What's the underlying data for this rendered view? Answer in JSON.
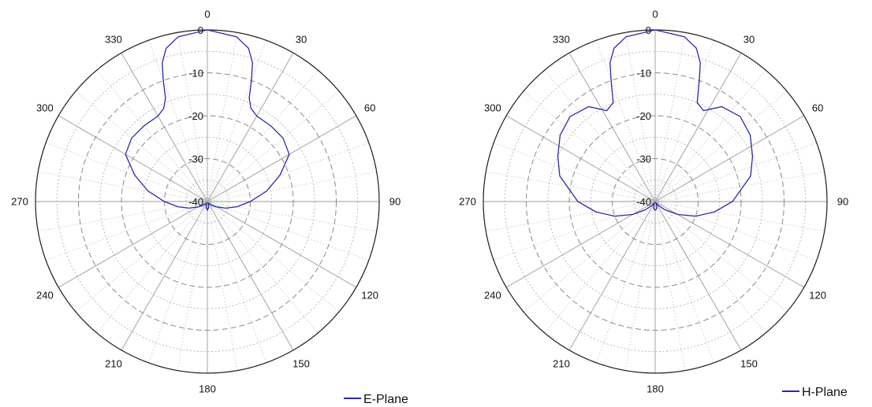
{
  "chart_data": [
    {
      "type": "polar-line",
      "title": "",
      "angle_unit": "degrees",
      "angle_ticks": [
        "0",
        "30",
        "60",
        "90",
        "120",
        "150",
        "180",
        "210",
        "240",
        "270",
        "300",
        "330"
      ],
      "radial_ticks": [
        "0",
        "-10",
        "-20",
        "-30",
        "-40"
      ],
      "rlim": [
        -40,
        0
      ],
      "grid": true,
      "legend_position": "bottom-right",
      "series": [
        {
          "name": "E-Plane",
          "color": "#2a2aa8",
          "points": [
            [
              0,
              0
            ],
            [
              10,
              -1
            ],
            [
              15,
              -3
            ],
            [
              18,
              -6
            ],
            [
              20,
              -10
            ],
            [
              22,
              -14
            ],
            [
              25,
              -16
            ],
            [
              30,
              -17
            ],
            [
              40,
              -17
            ],
            [
              50,
              -17
            ],
            [
              60,
              -18
            ],
            [
              70,
              -22
            ],
            [
              80,
              -26
            ],
            [
              90,
              -30
            ],
            [
              100,
              -33
            ],
            [
              110,
              -35.5
            ],
            [
              120,
              -37.5
            ],
            [
              130,
              -38.5
            ],
            [
              140,
              -39.3
            ],
            [
              150,
              -39.6
            ],
            [
              160,
              -39.2
            ],
            [
              170,
              -38.5
            ],
            [
              180,
              -38
            ],
            [
              190,
              -38.5
            ],
            [
              200,
              -39.2
            ],
            [
              210,
              -39.6
            ],
            [
              220,
              -39.3
            ],
            [
              230,
              -38.5
            ],
            [
              240,
              -37.5
            ],
            [
              250,
              -35.5
            ],
            [
              260,
              -33
            ],
            [
              270,
              -30
            ],
            [
              280,
              -26
            ],
            [
              290,
              -22
            ],
            [
              300,
              -18
            ],
            [
              310,
              -17
            ],
            [
              320,
              -17
            ],
            [
              330,
              -17
            ],
            [
              335,
              -16
            ],
            [
              338,
              -14
            ],
            [
              340,
              -10
            ],
            [
              342,
              -6
            ],
            [
              345,
              -3
            ],
            [
              350,
              -1
            ],
            [
              360,
              0
            ]
          ]
        }
      ]
    },
    {
      "type": "polar-line",
      "title": "",
      "angle_unit": "degrees",
      "angle_ticks": [
        "0",
        "30",
        "60",
        "90",
        "120",
        "150",
        "180",
        "210",
        "240",
        "270",
        "300",
        "330"
      ],
      "radial_ticks": [
        "0",
        "-10",
        "-20",
        "-30",
        "-40"
      ],
      "rlim": [
        -40,
        0
      ],
      "grid": true,
      "legend_position": "bottom-right",
      "series": [
        {
          "name": "H-Plane",
          "color": "#2a2aa8",
          "points": [
            [
              0,
              0
            ],
            [
              10,
              -1
            ],
            [
              15,
              -3
            ],
            [
              18,
              -6
            ],
            [
              20,
              -10
            ],
            [
              23,
              -15
            ],
            [
              28,
              -16
            ],
            [
              35,
              -13
            ],
            [
              45,
              -12
            ],
            [
              55,
              -13
            ],
            [
              65,
              -15
            ],
            [
              75,
              -17
            ],
            [
              90,
              -22
            ],
            [
              100,
              -26
            ],
            [
              110,
              -30
            ],
            [
              120,
              -34
            ],
            [
              130,
              -37
            ],
            [
              140,
              -38.8
            ],
            [
              150,
              -39.6
            ],
            [
              160,
              -39
            ],
            [
              170,
              -38.2
            ],
            [
              180,
              -38
            ],
            [
              190,
              -38.2
            ],
            [
              200,
              -39
            ],
            [
              210,
              -39.6
            ],
            [
              220,
              -38.8
            ],
            [
              230,
              -37
            ],
            [
              240,
              -34
            ],
            [
              250,
              -30
            ],
            [
              260,
              -26
            ],
            [
              270,
              -22
            ],
            [
              285,
              -17
            ],
            [
              295,
              -15
            ],
            [
              305,
              -13
            ],
            [
              315,
              -12
            ],
            [
              325,
              -13
            ],
            [
              332,
              -16
            ],
            [
              337,
              -15
            ],
            [
              340,
              -10
            ],
            [
              342,
              -6
            ],
            [
              345,
              -3
            ],
            [
              350,
              -1
            ],
            [
              360,
              0
            ]
          ]
        }
      ]
    }
  ]
}
